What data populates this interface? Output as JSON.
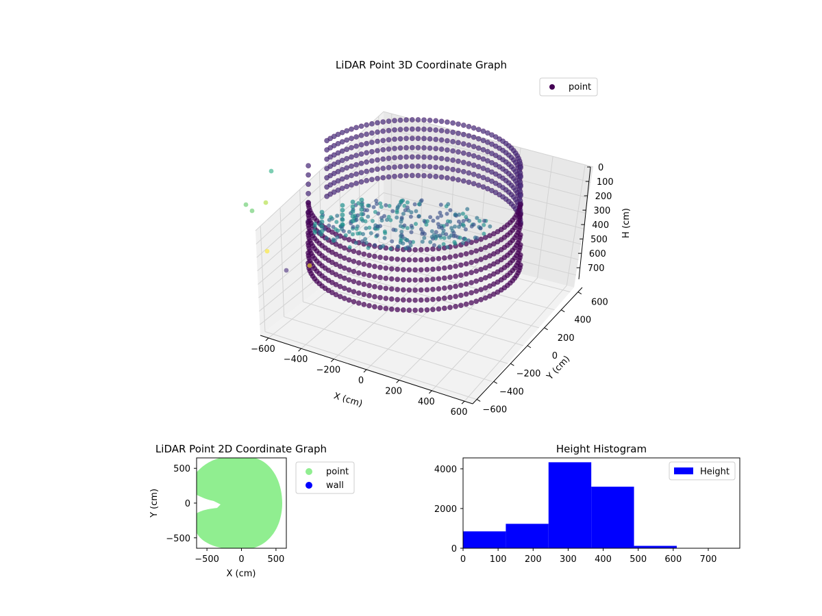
{
  "chart_data": [
    {
      "type": "scatter",
      "title": "LiDAR Point 3D Coordinate Graph",
      "xlabel": "X (cm)",
      "ylabel": "Y (cm)",
      "zlabel": "H (cm)",
      "x_ticks": [
        "−600",
        "−400",
        "−200",
        "0",
        "200",
        "400",
        "600"
      ],
      "y_ticks": [
        "−600",
        "−400",
        "−200",
        "0",
        "200",
        "400",
        "600"
      ],
      "z_ticks": [
        "0",
        "100",
        "200",
        "300",
        "400",
        "500",
        "600",
        "700"
      ],
      "xlim": [
        -650,
        650
      ],
      "ylim": [
        -650,
        650
      ],
      "zlim": [
        0,
        780
      ],
      "z_axis_inverted": true,
      "colormap": "viridis",
      "legend": {
        "entries": [
          "point"
        ],
        "location": "upper right"
      },
      "series": [
        {
          "name": "point",
          "color": "#440154",
          "description_shape": "ring wall of points, radius ≈ 600 cm, heights ≈ 0–700 cm, plus sparse interior points"
        }
      ],
      "grid": true
    },
    {
      "type": "scatter",
      "title": "LiDAR Point 2D Coordinate Graph",
      "xlabel": "X (cm)",
      "ylabel": "Y (cm)",
      "x_ticks": [
        "−500",
        "0",
        "500"
      ],
      "y_ticks": [
        "500",
        "0",
        "−500"
      ],
      "xlim": [
        -650,
        650
      ],
      "ylim": [
        -650,
        650
      ],
      "legend": {
        "entries": [
          "point",
          "wall"
        ],
        "location": "outside right"
      },
      "series": [
        {
          "name": "point",
          "color": "#90ee90"
        },
        {
          "name": "wall",
          "color": "#0000ff"
        }
      ],
      "grid": false
    },
    {
      "type": "bar",
      "title": "Height Histogram",
      "x_ticks": [
        "0",
        "100",
        "200",
        "300",
        "400",
        "500",
        "600",
        "700"
      ],
      "y_ticks": [
        "0",
        "2000",
        "4000"
      ],
      "xlim": [
        0,
        790
      ],
      "ylim": [
        0,
        4550
      ],
      "bin_edges": [
        0,
        122,
        244,
        366,
        488,
        610,
        732
      ],
      "values": [
        850,
        1230,
        4330,
        3100,
        120,
        0
      ],
      "legend": {
        "entries": [
          "Height"
        ],
        "location": "upper right"
      },
      "series": [
        {
          "name": "Height",
          "color": "#0000ff"
        }
      ],
      "grid": false
    }
  ]
}
